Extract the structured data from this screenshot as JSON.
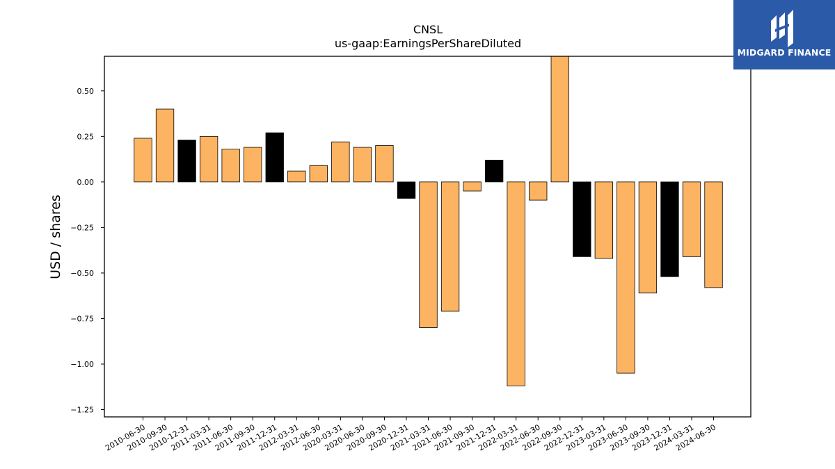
{
  "chart_data": {
    "type": "bar",
    "title": "CNSL",
    "subtitle": "us-gaap:EarningsPerShareDiluted",
    "xlabel": "",
    "ylabel": "USD / shares",
    "ylim": [
      -1.29,
      0.69
    ],
    "yticks": [
      0.5,
      0.25,
      0.0,
      -0.25,
      -0.5,
      -0.75,
      -1.0,
      -1.25
    ],
    "ytick_labels": [
      "0.50",
      "0.25",
      "0.00",
      "−0.25",
      "−0.50",
      "−0.75",
      "−1.00",
      "−1.25"
    ],
    "grid": false,
    "categories": [
      "2010-06-30",
      "2010-09-30",
      "2010-12-31",
      "2011-03-31",
      "2011-06-30",
      "2011-09-30",
      "2011-12-31",
      "2012-03-31",
      "2012-06-30",
      "2020-03-31",
      "2020-06-30",
      "2020-09-30",
      "2020-12-31",
      "2021-03-31",
      "2021-06-30",
      "2021-09-30",
      "2021-12-31",
      "2022-03-31",
      "2022-06-30",
      "2022-09-30",
      "2022-12-31",
      "2023-03-31",
      "2023-06-30",
      "2023-09-30",
      "2023-12-31",
      "2024-03-31",
      "2024-06-30"
    ],
    "values": [
      0.24,
      0.4,
      0.23,
      0.25,
      0.18,
      0.19,
      0.27,
      0.06,
      0.09,
      0.22,
      0.19,
      0.2,
      -0.09,
      -0.8,
      -0.71,
      -0.05,
      0.12,
      -1.12,
      -0.1,
      0.72,
      -0.41,
      -0.42,
      -1.05,
      -0.61,
      -0.52,
      -0.41,
      -0.58
    ],
    "highlight": [
      false,
      false,
      true,
      false,
      false,
      false,
      true,
      false,
      false,
      false,
      false,
      false,
      true,
      false,
      false,
      false,
      true,
      false,
      false,
      false,
      true,
      false,
      false,
      false,
      true,
      false,
      false
    ],
    "colors": {
      "bar": "#fdb462",
      "highlight": "#000000",
      "edge": "#000000"
    }
  },
  "logo": {
    "text": "MIDGARD FINANCE",
    "icon": "midgard-logo-icon",
    "background": "#2b5aa8"
  }
}
